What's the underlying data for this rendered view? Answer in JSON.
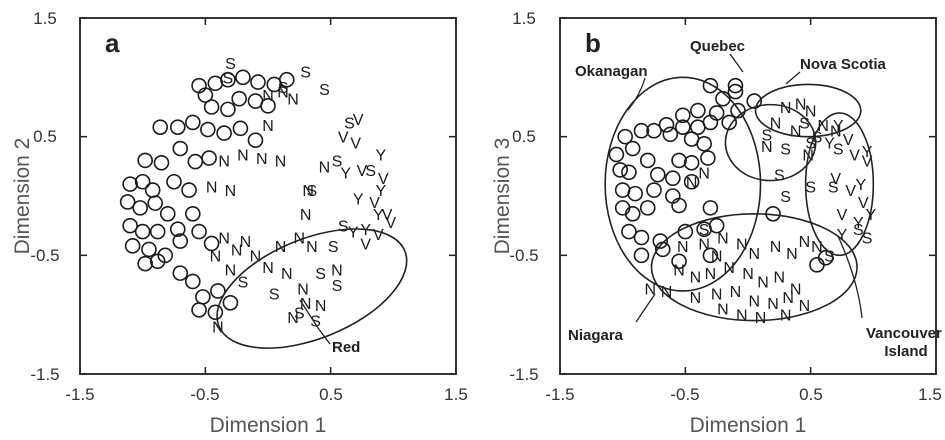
{
  "chart_data": [
    {
      "type": "scatter",
      "panel_label": "a",
      "xlabel": "Dimension 1",
      "ylabel": "Dimension 2",
      "xlim": [
        -1.5,
        1.5
      ],
      "ylim": [
        -1.5,
        1.5
      ],
      "xticks": [
        "-1.5",
        "-0.5",
        "0.5",
        "1.5"
      ],
      "yticks": [
        "-1.5",
        "-0.5",
        "0.5",
        "1.5"
      ],
      "grid": false,
      "regions": [
        {
          "label": "Red",
          "cx": 0.35,
          "cy": -0.78,
          "rx": 0.8,
          "ry": 0.42,
          "rot": -22
        }
      ],
      "series": [
        {
          "marker": "O",
          "points": [
            [
              -0.55,
              0.93
            ],
            [
              -0.42,
              0.95
            ],
            [
              -0.32,
              0.98
            ],
            [
              -0.2,
              1.0
            ],
            [
              -0.08,
              0.96
            ],
            [
              0.05,
              0.94
            ],
            [
              0.15,
              0.98
            ],
            [
              -0.5,
              0.85
            ],
            [
              -0.45,
              0.75
            ],
            [
              -0.32,
              0.73
            ],
            [
              -0.23,
              0.82
            ],
            [
              -0.1,
              0.8
            ],
            [
              0.0,
              0.76
            ],
            [
              -0.86,
              0.58
            ],
            [
              -0.72,
              0.58
            ],
            [
              -0.6,
              0.62
            ],
            [
              -0.48,
              0.56
            ],
            [
              -0.35,
              0.53
            ],
            [
              -0.22,
              0.57
            ],
            [
              -0.1,
              0.47
            ],
            [
              -0.98,
              0.3
            ],
            [
              -0.85,
              0.28
            ],
            [
              -0.7,
              0.4
            ],
            [
              -0.58,
              0.29
            ],
            [
              -0.47,
              0.32
            ],
            [
              -1.1,
              0.1
            ],
            [
              -1.0,
              0.12
            ],
            [
              -0.92,
              0.05
            ],
            [
              -0.75,
              0.12
            ],
            [
              -0.63,
              0.05
            ],
            [
              -1.12,
              -0.05
            ],
            [
              -1.02,
              -0.1
            ],
            [
              -0.9,
              -0.06
            ],
            [
              -0.8,
              -0.15
            ],
            [
              -1.1,
              -0.25
            ],
            [
              -1.0,
              -0.3
            ],
            [
              -0.88,
              -0.3
            ],
            [
              -0.72,
              -0.28
            ],
            [
              -0.6,
              -0.15
            ],
            [
              -1.08,
              -0.42
            ],
            [
              -0.95,
              -0.45
            ],
            [
              -0.82,
              -0.5
            ],
            [
              -0.7,
              -0.38
            ],
            [
              -0.55,
              -0.3
            ],
            [
              -0.45,
              -0.4
            ],
            [
              -0.98,
              -0.57
            ],
            [
              -0.88,
              -0.55
            ],
            [
              -0.7,
              -0.65
            ],
            [
              -0.6,
              -0.72
            ],
            [
              -0.52,
              -0.85
            ],
            [
              -0.4,
              -0.8
            ],
            [
              -0.55,
              -0.96
            ],
            [
              -0.42,
              -0.98
            ],
            [
              -0.3,
              -0.9
            ]
          ]
        },
        {
          "marker": "S",
          "points": [
            [
              -0.3,
              1.12
            ],
            [
              0.3,
              1.05
            ],
            [
              0.45,
              0.9
            ],
            [
              -0.32,
              1.0
            ],
            [
              0.12,
              0.92
            ],
            [
              0.65,
              0.62
            ],
            [
              0.55,
              0.3
            ],
            [
              0.82,
              0.22
            ],
            [
              0.35,
              0.05
            ],
            [
              0.6,
              -0.25
            ],
            [
              0.52,
              -0.42
            ],
            [
              0.05,
              -0.82
            ],
            [
              0.42,
              -0.65
            ],
            [
              0.55,
              -0.75
            ],
            [
              0.25,
              -0.98
            ],
            [
              0.38,
              -1.05
            ],
            [
              -0.2,
              -0.72
            ]
          ]
        },
        {
          "marker": "N",
          "points": [
            [
              0.0,
              0.85
            ],
            [
              0.12,
              0.88
            ],
            [
              0.2,
              0.82
            ],
            [
              0.0,
              0.6
            ],
            [
              -0.05,
              0.32
            ],
            [
              0.1,
              0.3
            ],
            [
              -0.35,
              0.3
            ],
            [
              -0.2,
              0.35
            ],
            [
              -0.45,
              0.08
            ],
            [
              -0.3,
              0.05
            ],
            [
              0.32,
              0.05
            ],
            [
              0.45,
              0.25
            ],
            [
              0.3,
              -0.15
            ],
            [
              0.25,
              -0.35
            ],
            [
              0.1,
              -0.42
            ],
            [
              0.35,
              -0.42
            ],
            [
              -0.35,
              -0.35
            ],
            [
              -0.25,
              -0.45
            ],
            [
              -0.18,
              -0.38
            ],
            [
              -0.1,
              -0.5
            ],
            [
              0.0,
              -0.6
            ],
            [
              0.15,
              -0.65
            ],
            [
              0.28,
              -0.78
            ],
            [
              -0.42,
              -0.5
            ],
            [
              -0.3,
              -0.62
            ],
            [
              0.3,
              -0.9
            ],
            [
              0.42,
              -0.92
            ],
            [
              0.2,
              -1.02
            ],
            [
              -0.4,
              -1.1
            ],
            [
              0.55,
              -0.62
            ]
          ]
        },
        {
          "marker": "V",
          "points": [
            [
              0.6,
              0.5
            ],
            [
              0.72,
              0.65
            ],
            [
              0.7,
              0.45
            ],
            [
              0.75,
              0.22
            ],
            [
              0.92,
              0.15
            ],
            [
              0.85,
              -0.05
            ],
            [
              0.95,
              -0.15
            ],
            [
              0.88,
              -0.32
            ],
            [
              0.98,
              -0.22
            ],
            [
              0.78,
              -0.4
            ]
          ]
        },
        {
          "marker": "Y",
          "points": [
            [
              0.62,
              0.2
            ],
            [
              0.9,
              0.35
            ],
            [
              0.72,
              -0.02
            ],
            [
              0.9,
              0.05
            ],
            [
              0.88,
              -0.15
            ],
            [
              0.78,
              -0.28
            ],
            [
              0.68,
              -0.3
            ]
          ]
        }
      ]
    },
    {
      "type": "scatter",
      "panel_label": "b",
      "xlabel": "Dimension 1",
      "ylabel": "Dimension 3",
      "xlim": [
        -1.5,
        1.5
      ],
      "ylim": [
        -1.5,
        1.5
      ],
      "xticks": [
        "-1.5",
        "-0.5",
        "0.5",
        "1.5"
      ],
      "yticks": [
        "-1.5",
        "-0.5",
        "0.5",
        "1.5"
      ],
      "grid": false,
      "regions": [
        {
          "label": "Okanagan",
          "cx": -0.52,
          "cy": 0.1,
          "rx": 0.62,
          "ry": 0.9,
          "rot": 0
        },
        {
          "label": "Quebec",
          "cx": 0.18,
          "cy": 0.45,
          "rx": 0.36,
          "ry": 0.32,
          "rot": 0
        },
        {
          "label": "Nova Scotia",
          "cx": 0.48,
          "cy": 0.72,
          "rx": 0.42,
          "ry": 0.22,
          "rot": 0
        },
        {
          "label": "Vancouver Island",
          "cx": 0.73,
          "cy": 0.1,
          "rx": 0.27,
          "ry": 0.6,
          "rot": 0
        },
        {
          "label": "Niagara",
          "cx": 0.05,
          "cy": -0.6,
          "rx": 0.82,
          "ry": 0.45,
          "rot": 0
        }
      ],
      "series": [
        {
          "marker": "O",
          "points": [
            [
              -0.3,
              0.93
            ],
            [
              -0.1,
              0.93
            ],
            [
              -0.2,
              0.82
            ],
            [
              0.05,
              0.8
            ],
            [
              -0.08,
              0.72
            ],
            [
              -0.4,
              0.72
            ],
            [
              -0.52,
              0.68
            ],
            [
              -0.25,
              0.7
            ],
            [
              -0.65,
              0.6
            ],
            [
              -0.52,
              0.58
            ],
            [
              -0.4,
              0.58
            ],
            [
              -0.3,
              0.62
            ],
            [
              -0.15,
              0.62
            ],
            [
              -0.98,
              0.5
            ],
            [
              -0.85,
              0.55
            ],
            [
              -0.75,
              0.55
            ],
            [
              -0.62,
              0.52
            ],
            [
              -0.45,
              0.48
            ],
            [
              -0.35,
              0.44
            ],
            [
              -1.05,
              0.35
            ],
            [
              -0.92,
              0.4
            ],
            [
              -0.8,
              0.3
            ],
            [
              -0.55,
              0.3
            ],
            [
              -0.45,
              0.28
            ],
            [
              -0.32,
              0.32
            ],
            [
              -1.02,
              0.22
            ],
            [
              -0.95,
              0.2
            ],
            [
              -0.72,
              0.18
            ],
            [
              -0.6,
              0.15
            ],
            [
              -0.45,
              0.12
            ],
            [
              -1.0,
              0.05
            ],
            [
              -0.9,
              0.02
            ],
            [
              -0.75,
              0.05
            ],
            [
              -0.6,
              0.0
            ],
            [
              -1.0,
              -0.1
            ],
            [
              -0.92,
              -0.15
            ],
            [
              -0.8,
              -0.1
            ],
            [
              -0.55,
              -0.08
            ],
            [
              -0.3,
              -0.1
            ],
            [
              -0.95,
              -0.3
            ],
            [
              -0.85,
              -0.35
            ],
            [
              -0.7,
              -0.38
            ],
            [
              -0.5,
              -0.3
            ],
            [
              -0.35,
              -0.28
            ],
            [
              -0.25,
              -0.25
            ],
            [
              -0.85,
              -0.5
            ],
            [
              -0.68,
              -0.45
            ],
            [
              -0.55,
              -0.55
            ],
            [
              -0.3,
              -0.5
            ],
            [
              0.55,
              -0.58
            ],
            [
              0.62,
              -0.52
            ],
            [
              0.2,
              -0.15
            ],
            [
              -0.1,
              0.88
            ]
          ]
        },
        {
          "marker": "S",
          "points": [
            [
              0.15,
              0.52
            ],
            [
              0.3,
              0.4
            ],
            [
              0.5,
              0.45
            ],
            [
              0.72,
              0.4
            ],
            [
              0.25,
              0.18
            ],
            [
              0.3,
              0.0
            ],
            [
              0.5,
              0.08
            ],
            [
              0.68,
              0.08
            ],
            [
              0.88,
              -0.28
            ],
            [
              0.95,
              -0.35
            ],
            [
              0.65,
              -0.5
            ],
            [
              0.55,
              0.5
            ],
            [
              0.45,
              0.62
            ],
            [
              -0.35,
              -0.28
            ]
          ]
        },
        {
          "marker": "N",
          "points": [
            [
              0.3,
              0.75
            ],
            [
              0.42,
              0.78
            ],
            [
              0.5,
              0.72
            ],
            [
              0.22,
              0.62
            ],
            [
              0.6,
              0.6
            ],
            [
              0.7,
              0.55
            ],
            [
              0.38,
              0.55
            ],
            [
              0.15,
              0.42
            ],
            [
              0.48,
              0.35
            ],
            [
              -0.45,
              0.12
            ],
            [
              -0.35,
              0.2
            ],
            [
              -0.52,
              -0.42
            ],
            [
              -0.35,
              -0.4
            ],
            [
              -0.2,
              -0.35
            ],
            [
              -0.05,
              -0.4
            ],
            [
              -0.25,
              -0.5
            ],
            [
              0.05,
              -0.48
            ],
            [
              0.22,
              -0.42
            ],
            [
              0.35,
              -0.48
            ],
            [
              0.45,
              -0.38
            ],
            [
              0.55,
              -0.42
            ],
            [
              -0.55,
              -0.62
            ],
            [
              -0.42,
              -0.68
            ],
            [
              -0.3,
              -0.65
            ],
            [
              -0.15,
              -0.6
            ],
            [
              0.0,
              -0.65
            ],
            [
              0.12,
              -0.72
            ],
            [
              0.25,
              -0.68
            ],
            [
              0.38,
              -0.78
            ],
            [
              -0.78,
              -0.78
            ],
            [
              -0.65,
              -0.8
            ],
            [
              -0.42,
              -0.85
            ],
            [
              -0.25,
              -0.82
            ],
            [
              -0.1,
              -0.8
            ],
            [
              0.05,
              -0.88
            ],
            [
              0.2,
              -0.9
            ],
            [
              0.32,
              -0.85
            ],
            [
              0.45,
              -0.92
            ],
            [
              -0.2,
              -0.95
            ],
            [
              -0.05,
              -1.0
            ],
            [
              0.1,
              -1.02
            ],
            [
              0.3,
              -1.0
            ]
          ]
        },
        {
          "marker": "V",
          "points": [
            [
              0.8,
              0.48
            ],
            [
              0.85,
              0.35
            ],
            [
              0.95,
              0.3
            ],
            [
              0.7,
              0.15
            ],
            [
              0.82,
              0.05
            ],
            [
              0.75,
              -0.15
            ],
            [
              0.92,
              -0.05
            ]
          ]
        },
        {
          "marker": "Y",
          "points": [
            [
              0.72,
              0.6
            ],
            [
              0.65,
              0.45
            ],
            [
              0.95,
              0.38
            ],
            [
              0.9,
              0.1
            ],
            [
              0.98,
              -0.15
            ],
            [
              0.88,
              -0.22
            ],
            [
              0.75,
              -0.32
            ]
          ]
        }
      ]
    }
  ]
}
